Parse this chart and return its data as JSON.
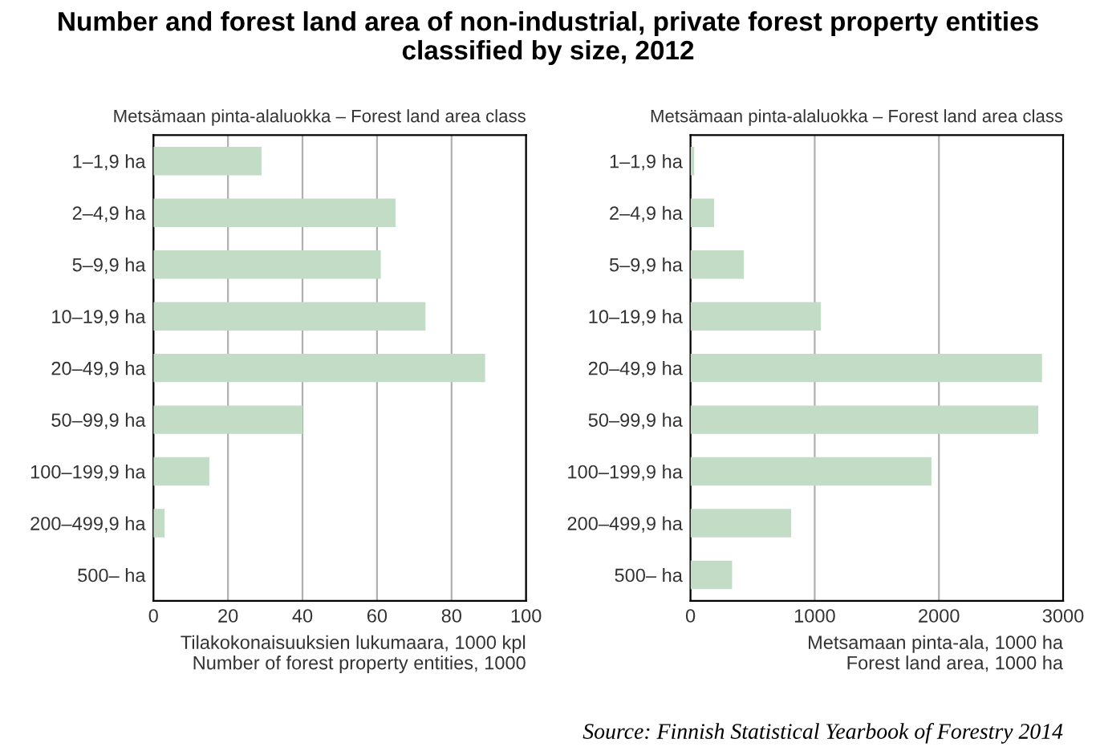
{
  "chart_data": [
    {
      "type": "bar",
      "orientation": "horizontal",
      "title": "Number and forest land area of non-industrial, private forest property entities classified by size, 2012",
      "ylabel": "Metsämaan pinta-alaluokka – Forest land area class",
      "xlabel": "Tilakokonaisuuksien lukumaara, 1000 kpl\nNumber of forest property entities, 1000",
      "categories": [
        "1–1,9 ha",
        "2–4,9 ha",
        "5–9,9 ha",
        "10–19,9 ha",
        "20–49,9 ha",
        "50–99,9 ha",
        "100–199,9 ha",
        "200–499,9 ha",
        "500– ha"
      ],
      "values": [
        29,
        65,
        61,
        73,
        89,
        40,
        15,
        3,
        0
      ],
      "color": "#c3dcc6",
      "xlim": [
        0,
        100
      ],
      "xticks": [
        0,
        20,
        40,
        60,
        80,
        100
      ],
      "grid": "x"
    },
    {
      "type": "bar",
      "orientation": "horizontal",
      "ylabel": "Metsämaan pinta-alaluokka – Forest land area class",
      "xlabel": "Metsamaan pinta-ala, 1000 ha\nForest land area, 1000 ha",
      "categories": [
        "1–1,9 ha",
        "2–4,9 ha",
        "5–9,9 ha",
        "10–19,9 ha",
        "20–49,9 ha",
        "50–99,9 ha",
        "100–199,9 ha",
        "200–499,9 ha",
        "500– ha"
      ],
      "values": [
        30,
        190,
        430,
        1050,
        2830,
        2800,
        1940,
        810,
        335
      ],
      "color": "#c3dcc6",
      "xlim": [
        0,
        3000
      ],
      "xticks": [
        0,
        1000,
        2000,
        3000
      ],
      "grid": "x",
      "annotations": [
        "Source: Finnish Statistical Yearbook of Forestry 2014"
      ]
    }
  ]
}
